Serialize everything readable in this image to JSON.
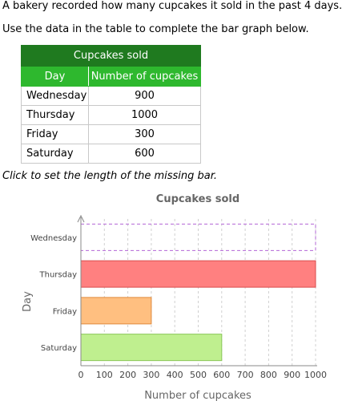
{
  "intro": {
    "line1": "A bakery recorded how many cupcakes it sold in the past 4 days.",
    "line2": "Use the data in the table to complete the bar graph below."
  },
  "table": {
    "title": "Cupcakes sold",
    "headers": [
      "Day",
      "Number of cupcakes"
    ],
    "rows": [
      {
        "day": "Wednesday",
        "value": "900"
      },
      {
        "day": "Thursday",
        "value": "1000"
      },
      {
        "day": "Friday",
        "value": "300"
      },
      {
        "day": "Saturday",
        "value": "600"
      }
    ]
  },
  "instruction": "Click to set the length of the missing bar.",
  "colors": {
    "table_title_bg": "#1f7a1f",
    "table_header_bg": "#2eb82e",
    "thursday_bar": "#ff8080",
    "friday_bar": "#ffbf80",
    "saturday_bar": "#bfef8f",
    "missing_bar_outline": "#b366d6"
  },
  "chart_data": {
    "type": "bar",
    "orientation": "horizontal",
    "title": "Cupcakes sold",
    "xlabel": "Number of cupcakes",
    "ylabel": "Day",
    "categories": [
      "Wednesday",
      "Thursday",
      "Friday",
      "Saturday"
    ],
    "values": [
      null,
      1000,
      300,
      600
    ],
    "missing_bar": "Wednesday",
    "xlim": [
      0,
      1000
    ],
    "xticks": [
      0,
      100,
      200,
      300,
      400,
      500,
      600,
      700,
      800,
      900,
      1000
    ],
    "grid": "vertical dashed"
  }
}
